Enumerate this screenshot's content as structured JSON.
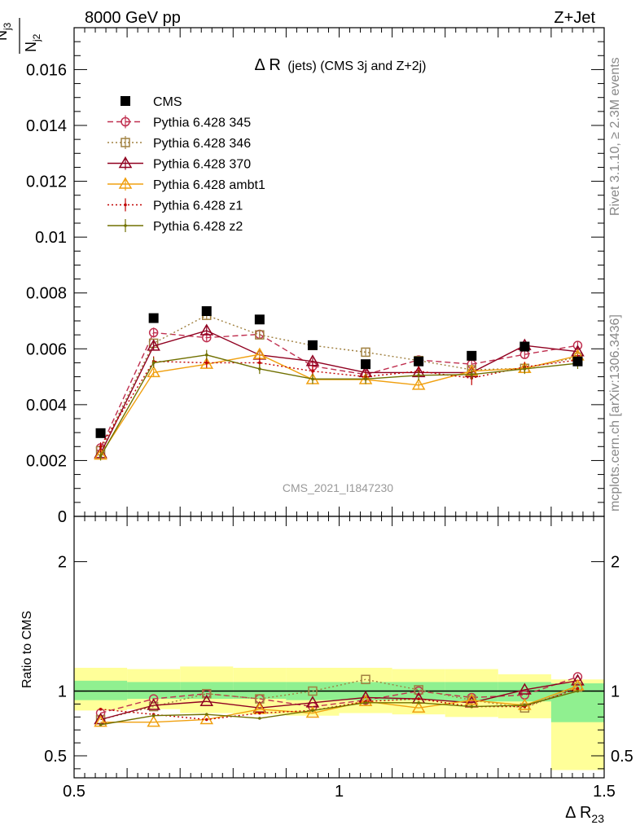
{
  "header": {
    "left": "8000 GeV pp",
    "right": "Z+Jet"
  },
  "title": {
    "main": "Δ R",
    "sub": "(jets) (CMS 3j and Z+2j)"
  },
  "side_text": {
    "rivet": "Rivet 3.1.10, ≥ 2.3M events",
    "mcplots": "mcplots.cern.ch [arXiv:1306.3436]"
  },
  "watermark": "CMS_2021_I1847230",
  "colors": {
    "cms": "#000000",
    "p345": "#c03050",
    "p346": "#a08040",
    "p370": "#900020",
    "ambt1": "#f0a010",
    "z1": "#c00000",
    "z2": "#707000",
    "band_inner": "#90f090",
    "band_outer": "#ffff99"
  },
  "chart_data": [
    {
      "type": "line",
      "panel": "main",
      "ylabel_num": "N",
      "ylabel_num_sub": "j3",
      "ylabel_den": "N",
      "ylabel_den_sub": "j2",
      "ylim": [
        0,
        0.0175
      ],
      "yticks": [
        0,
        0.002,
        0.004,
        0.006,
        0.008,
        0.01,
        0.012,
        0.014,
        0.016
      ],
      "ytick_labels": [
        "0",
        "0.002",
        "0.004",
        "0.006",
        "0.008",
        "0.01",
        "0.012",
        "0.014",
        "0.016"
      ],
      "xlim": [
        0.5,
        1.5
      ],
      "x": [
        0.55,
        0.65,
        0.75,
        0.85,
        0.95,
        1.05,
        1.15,
        1.25,
        1.35,
        1.45
      ],
      "legend_placement": "top-left",
      "series": [
        {
          "name": "CMS",
          "color": "#000000",
          "marker": "square",
          "line": "none",
          "values": [
            0.00298,
            0.0071,
            0.00735,
            0.00705,
            0.00613,
            0.00545,
            0.00555,
            0.00575,
            0.00608,
            0.00555
          ]
        },
        {
          "name": "Pythia 6.428 345",
          "color": "#c03050",
          "marker": "circle",
          "line": "dashed",
          "values": [
            0.00245,
            0.00658,
            0.0064,
            0.00652,
            0.00538,
            0.00508,
            0.0056,
            0.00545,
            0.0058,
            0.00612
          ],
          "err": [
            0.0001,
            0.00018,
            0.00015,
            0.00013,
            0.00012,
            0.00012,
            0.00012,
            0.00012,
            0.00013,
            0.00015
          ]
        },
        {
          "name": "Pythia 6.428 346",
          "color": "#a08040",
          "marker": "square-open",
          "line": "dotted",
          "values": [
            0.00235,
            0.0062,
            0.0072,
            0.0065,
            0.00612,
            0.00588,
            0.00558,
            0.00525,
            0.0053,
            0.0057
          ],
          "err": [
            0.0001,
            0.00015,
            0.00015,
            0.00013,
            0.00012,
            0.00012,
            0.00012,
            0.00012,
            0.00012,
            0.00014
          ]
        },
        {
          "name": "Pythia 6.428 370",
          "color": "#900020",
          "marker": "triangle-open",
          "line": "solid",
          "values": [
            0.00225,
            0.0061,
            0.00665,
            0.00578,
            0.00555,
            0.00515,
            0.00515,
            0.00515,
            0.00612,
            0.0059
          ],
          "err": [
            0.0001,
            0.00016,
            0.00016,
            0.00014,
            0.00013,
            0.00013,
            0.00012,
            0.00012,
            0.00014,
            0.00014
          ]
        },
        {
          "name": "Pythia 6.428 ambt1",
          "color": "#f0a010",
          "marker": "triangle-open",
          "line": "solid",
          "values": [
            0.0022,
            0.00515,
            0.00545,
            0.0058,
            0.0049,
            0.0049,
            0.0047,
            0.0052,
            0.0053,
            0.00575
          ],
          "err": [
            0.0001,
            0.00013,
            0.00013,
            0.00013,
            0.00012,
            0.00012,
            0.00012,
            0.00012,
            0.00012,
            0.00014
          ]
        },
        {
          "name": "Pythia 6.428 z1",
          "color": "#c00000",
          "marker": "dot",
          "line": "dotted",
          "values": [
            0.0025,
            0.00555,
            0.0055,
            0.0055,
            0.0052,
            0.005,
            0.0052,
            0.00495,
            0.00535,
            0.0056
          ],
          "err": [
            0.00015,
            0.00018,
            0.00018,
            0.00018,
            0.00018,
            0.00018,
            0.00018,
            0.00025,
            0.00018,
            0.0002
          ]
        },
        {
          "name": "Pythia 6.428 z2",
          "color": "#707000",
          "marker": "dot",
          "line": "solid",
          "values": [
            0.00215,
            0.0055,
            0.00578,
            0.00528,
            0.00492,
            0.00492,
            0.00505,
            0.00508,
            0.00528,
            0.00548
          ],
          "err": [
            0.00015,
            0.00018,
            0.00018,
            0.00018,
            0.00018,
            0.00018,
            0.00018,
            0.00018,
            0.00018,
            0.0002
          ]
        }
      ]
    },
    {
      "type": "line",
      "panel": "ratio",
      "ylabel": "Ratio to CMS",
      "xlabel_main": "Δ R",
      "xlabel_sub": "23",
      "ylim": [
        0.33,
        2.35
      ],
      "yticks": [
        0.5,
        1,
        2
      ],
      "ytick_labels": [
        "0.5",
        "1",
        "2"
      ],
      "xlim": [
        0.5,
        1.5
      ],
      "xticks": [
        0.5,
        1,
        1.5
      ],
      "xtick_labels": [
        "0.5",
        "1",
        "1.5"
      ],
      "bin_edges": [
        0.5,
        0.6,
        0.7,
        0.8,
        0.9,
        1.0,
        1.1,
        1.2,
        1.3,
        1.4,
        1.5
      ],
      "band_inner": [
        [
          0.93,
          1.08
        ],
        [
          0.94,
          1.07
        ],
        [
          0.94,
          1.07
        ],
        [
          0.94,
          1.07
        ],
        [
          0.93,
          1.07
        ],
        [
          0.93,
          1.07
        ],
        [
          0.93,
          1.07
        ],
        [
          0.92,
          1.07
        ],
        [
          0.92,
          1.07
        ],
        [
          0.76,
          1.06
        ]
      ],
      "band_outer": [
        [
          0.85,
          1.18
        ],
        [
          0.86,
          1.17
        ],
        [
          0.83,
          1.19
        ],
        [
          0.82,
          1.18
        ],
        [
          0.81,
          1.18
        ],
        [
          0.83,
          1.18
        ],
        [
          0.82,
          1.17
        ],
        [
          0.8,
          1.17
        ],
        [
          0.79,
          1.13
        ],
        [
          0.39,
          1.09
        ]
      ],
      "x": [
        0.55,
        0.65,
        0.75,
        0.85,
        0.95,
        1.05,
        1.15,
        1.25,
        1.35,
        1.45
      ],
      "series": [
        {
          "name": "Pythia 6.428 345",
          "color": "#c03050",
          "marker": "circle",
          "line": "dashed",
          "values": [
            0.83,
            0.94,
            0.98,
            0.94,
            0.88,
            0.93,
            1.0,
            0.95,
            0.97,
            1.11
          ]
        },
        {
          "name": "Pythia 6.428 346",
          "color": "#a08040",
          "marker": "square-open",
          "line": "dotted",
          "values": [
            0.78,
            0.88,
            0.98,
            0.94,
            1.0,
            1.09,
            1.01,
            0.93,
            0.87,
            1.03
          ]
        },
        {
          "name": "Pythia 6.428 370",
          "color": "#900020",
          "marker": "triangle-open",
          "line": "solid",
          "values": [
            0.78,
            0.89,
            0.92,
            0.87,
            0.91,
            0.95,
            0.94,
            0.91,
            1.01,
            1.08
          ]
        },
        {
          "name": "Pythia 6.428 ambt1",
          "color": "#f0a010",
          "marker": "triangle-open",
          "line": "solid",
          "values": [
            0.76,
            0.76,
            0.78,
            0.86,
            0.83,
            0.92,
            0.87,
            0.93,
            0.89,
            1.04
          ]
        },
        {
          "name": "Pythia 6.428 z1",
          "color": "#c00000",
          "marker": "dot",
          "line": "dotted",
          "values": [
            0.86,
            0.82,
            0.78,
            0.83,
            0.85,
            0.92,
            0.94,
            0.88,
            0.88,
            1.02
          ]
        },
        {
          "name": "Pythia 6.428 z2",
          "color": "#707000",
          "marker": "dot",
          "line": "solid",
          "values": [
            0.74,
            0.81,
            0.82,
            0.79,
            0.85,
            0.91,
            0.91,
            0.88,
            0.89,
            1.0
          ]
        }
      ]
    }
  ]
}
